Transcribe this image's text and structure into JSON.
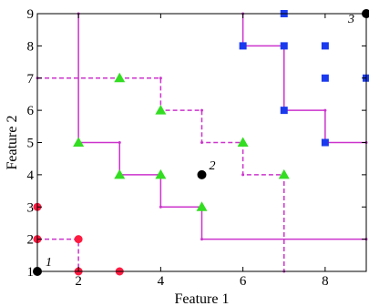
{
  "colors": {
    "axis": "#000000",
    "boundary": "#cc33cc",
    "class1": "#ff1a40",
    "class2": "#33dd22",
    "class3": "#1a3aee",
    "query": "#000000"
  },
  "chart_data": {
    "type": "scatter",
    "xlabel": "Feature 1",
    "ylabel": "Feature 2",
    "xlim": [
      1,
      9
    ],
    "ylim": [
      1,
      9
    ],
    "xticks": [
      2,
      4,
      6,
      8
    ],
    "yticks": [
      1,
      2,
      3,
      4,
      5,
      6,
      7,
      8,
      9
    ],
    "grid": false,
    "series": [
      {
        "marker": "circle",
        "color": "#ff1a40",
        "points": [
          [
            1,
            2
          ],
          [
            1,
            3
          ],
          [
            2,
            2
          ],
          [
            2,
            1
          ],
          [
            3,
            1
          ]
        ]
      },
      {
        "marker": "triangle",
        "color": "#33dd22",
        "points": [
          [
            2,
            5
          ],
          [
            3,
            4
          ],
          [
            3,
            7
          ],
          [
            4,
            4
          ],
          [
            4,
            6
          ],
          [
            5,
            3
          ],
          [
            6,
            5
          ],
          [
            7,
            4
          ]
        ]
      },
      {
        "marker": "square",
        "color": "#1a3aee",
        "points": [
          [
            6,
            8
          ],
          [
            7,
            9
          ],
          [
            7,
            8
          ],
          [
            7,
            6
          ],
          [
            8,
            8
          ],
          [
            8,
            7
          ],
          [
            8,
            5
          ],
          [
            9,
            7
          ]
        ]
      }
    ],
    "query_points": [
      {
        "label": "1",
        "x": 1,
        "y": 1
      },
      {
        "label": "2",
        "x": 5,
        "y": 4
      },
      {
        "label": "3",
        "x": 9,
        "y": 9
      }
    ],
    "boundaries": [
      {
        "style": "solid",
        "points": [
          [
            2,
            9
          ],
          [
            2,
            5
          ],
          [
            3,
            5
          ],
          [
            3,
            4
          ],
          [
            4,
            4
          ],
          [
            4,
            3
          ],
          [
            5,
            3
          ],
          [
            5,
            2
          ],
          [
            9,
            2
          ]
        ]
      },
      {
        "style": "dashed",
        "points": [
          [
            1,
            7
          ],
          [
            4,
            7
          ],
          [
            4,
            6
          ],
          [
            5,
            6
          ],
          [
            5,
            5
          ],
          [
            6,
            5
          ],
          [
            6,
            4
          ],
          [
            7,
            4
          ],
          [
            7,
            1
          ]
        ]
      },
      {
        "style": "solid",
        "points": [
          [
            6,
            9
          ],
          [
            6,
            8
          ],
          [
            7,
            8
          ],
          [
            7,
            6
          ],
          [
            8,
            6
          ],
          [
            8,
            5
          ],
          [
            9,
            5
          ]
        ]
      },
      {
        "style": "dashed",
        "points": [
          [
            1,
            2
          ],
          [
            2,
            2
          ],
          [
            2,
            1
          ]
        ]
      }
    ]
  }
}
